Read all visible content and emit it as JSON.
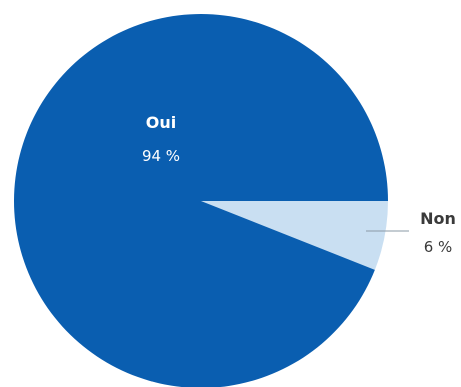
{
  "chart_data": {
    "type": "pie",
    "slices": [
      {
        "label": "Oui",
        "value": 94,
        "value_text": "94 %",
        "color": "#0a5eb0"
      },
      {
        "label": "Non",
        "value": 6,
        "value_text": "6 %",
        "color": "#c9dff2"
      }
    ]
  }
}
